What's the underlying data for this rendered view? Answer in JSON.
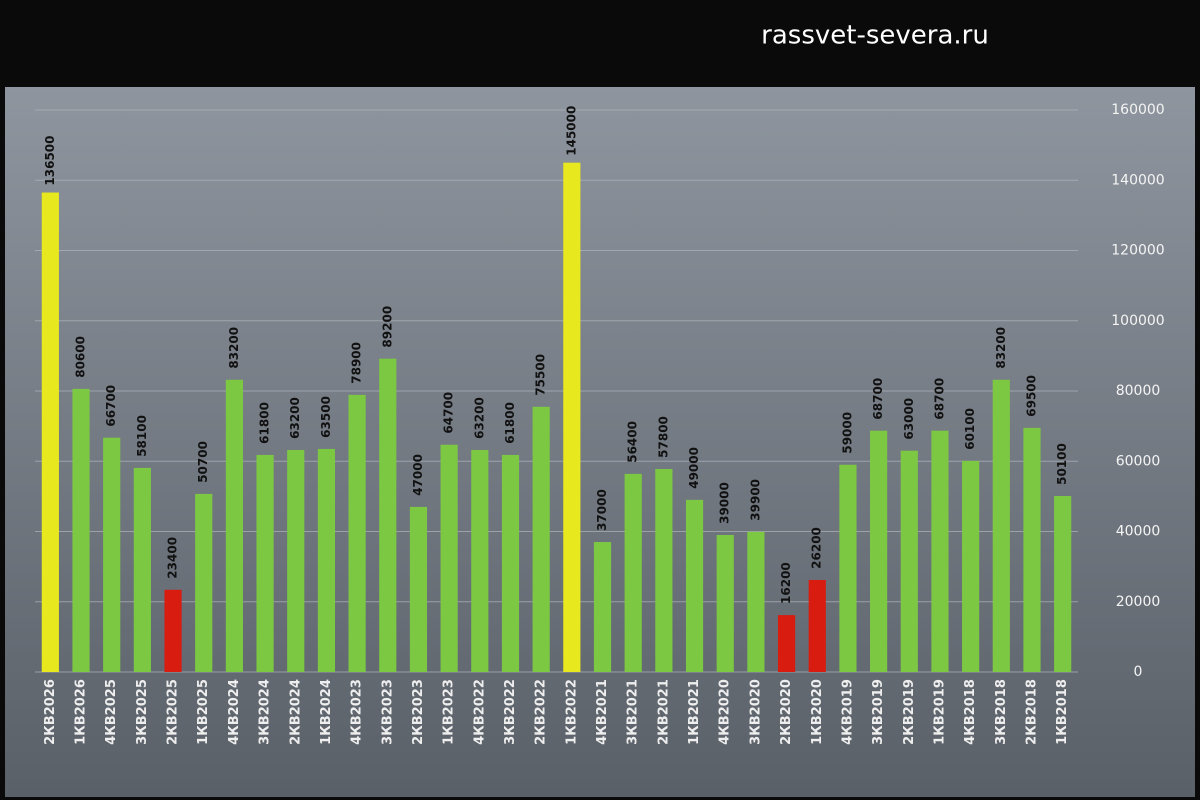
{
  "chart_data": {
    "type": "bar",
    "watermark": "rassvet-severa.ru",
    "categories": [
      "2КВ2026",
      "1КВ2026",
      "4КВ2025",
      "3КВ2025",
      "2КВ2025",
      "1КВ2025",
      "4КВ2024",
      "3КВ2024",
      "2КВ2024",
      "1КВ2024",
      "4КВ2023",
      "3КВ2023",
      "2КВ2023",
      "1КВ2023",
      "4КВ2022",
      "3КВ2022",
      "2КВ2022",
      "1КВ2022",
      "4КВ2021",
      "3КВ2021",
      "2КВ2021",
      "1КВ2021",
      "4КВ2020",
      "3КВ2020",
      "2КВ2020",
      "1КВ2020",
      "4КВ2019",
      "3КВ2019",
      "2КВ2019",
      "1КВ2019",
      "4КВ2018",
      "3КВ2018",
      "2КВ2018",
      "1КВ2018"
    ],
    "values": [
      136500,
      80600,
      66700,
      58100,
      23400,
      50700,
      83200,
      61800,
      63200,
      63500,
      78900,
      89200,
      47000,
      64700,
      63200,
      61800,
      75500,
      145000,
      37000,
      56400,
      57800,
      49000,
      39000,
      39900,
      16200,
      26200,
      59000,
      68700,
      63000,
      68700,
      60100,
      83200,
      69500,
      50100
    ],
    "colors": [
      "#e8e81e",
      "#7cc843",
      "#7cc843",
      "#7cc843",
      "#d81c10",
      "#7cc843",
      "#7cc843",
      "#7cc843",
      "#7cc843",
      "#7cc843",
      "#7cc843",
      "#7cc843",
      "#7cc843",
      "#7cc843",
      "#7cc843",
      "#7cc843",
      "#7cc843",
      "#e8e81e",
      "#7cc843",
      "#7cc843",
      "#7cc843",
      "#7cc843",
      "#7cc843",
      "#7cc843",
      "#d81c10",
      "#d81c10",
      "#7cc843",
      "#7cc843",
      "#7cc843",
      "#7cc843",
      "#7cc843",
      "#7cc843",
      "#7cc843",
      "#7cc843"
    ],
    "ylim": [
      0,
      160000
    ],
    "yticks": [
      0,
      20000,
      40000,
      60000,
      80000,
      100000,
      120000,
      140000,
      160000
    ],
    "grid": true,
    "y_axis_side": "right"
  }
}
